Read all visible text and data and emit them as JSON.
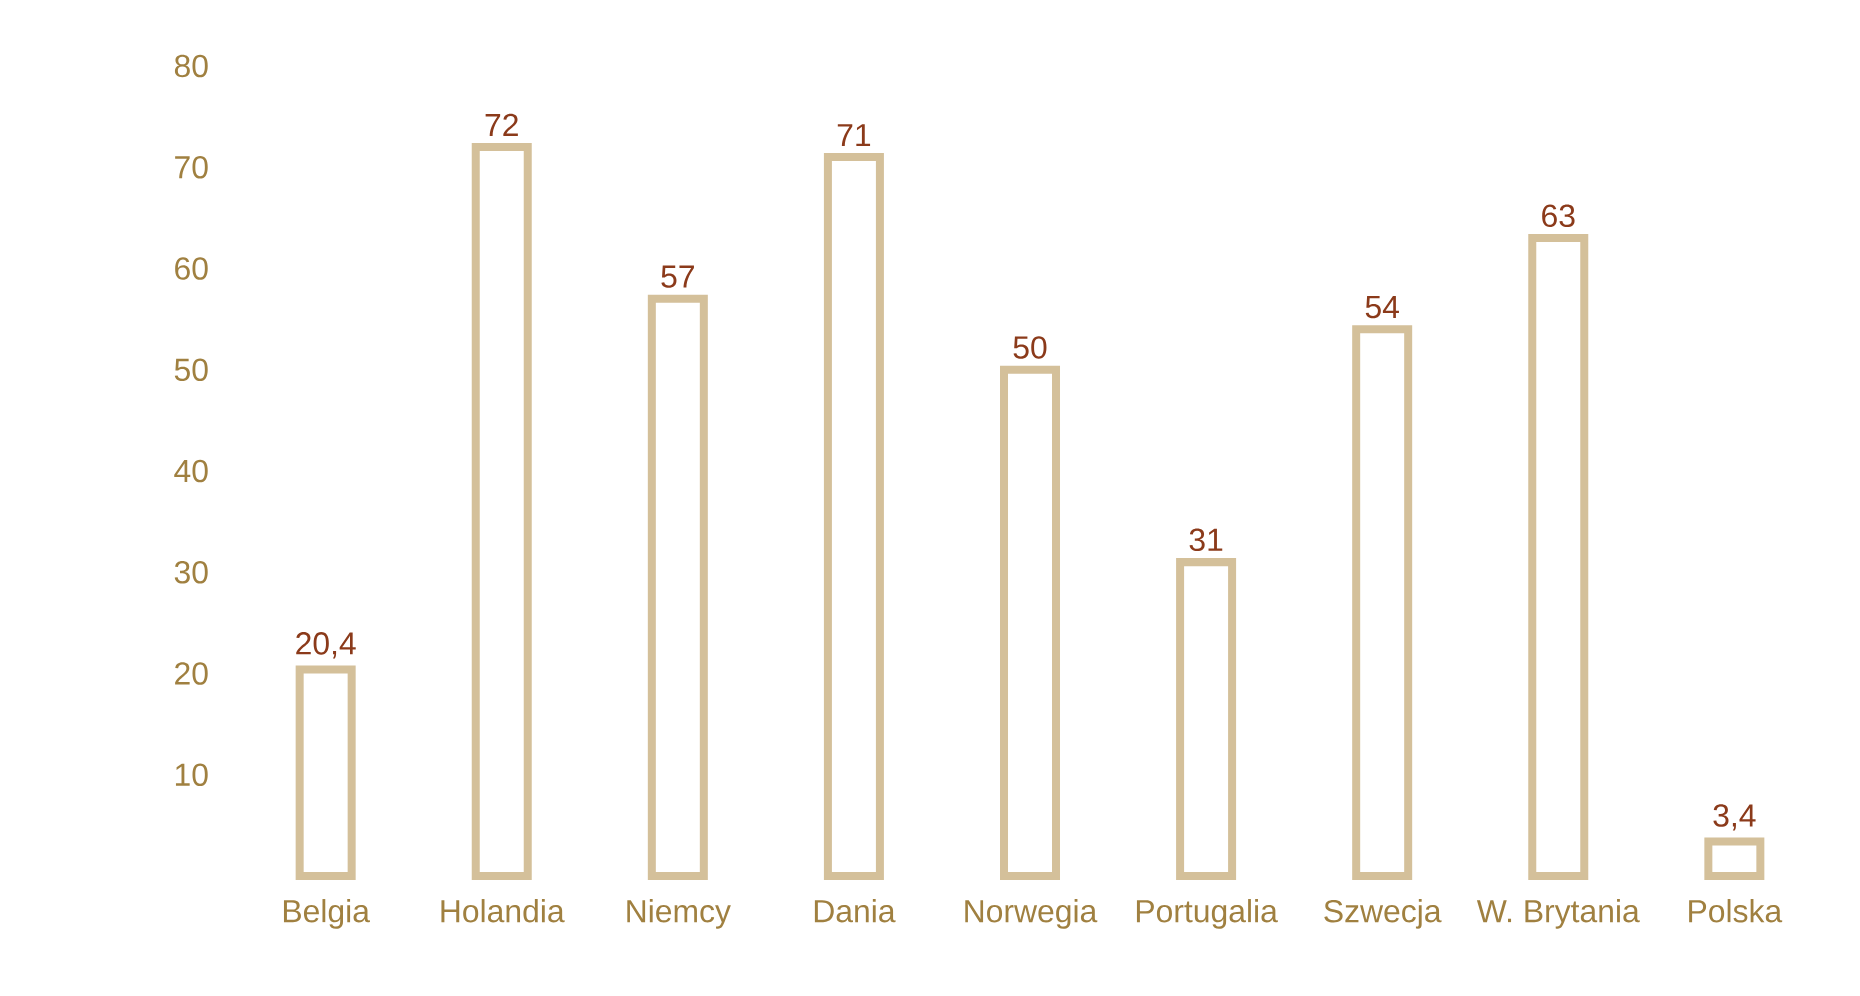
{
  "chart_data": {
    "type": "bar",
    "categories": [
      "Belgia",
      "Holandia",
      "Niemcy",
      "Dania",
      "Norwegia",
      "Portugalia",
      "Szwecja",
      "W. Brytania",
      "Polska"
    ],
    "values": [
      20.4,
      72,
      57,
      71,
      50,
      31,
      54,
      63,
      3.4
    ],
    "value_labels": [
      "20,4",
      "72",
      "57",
      "71",
      "50",
      "31",
      "54",
      "63",
      "3,4"
    ],
    "color": "#d4c09a",
    "ylim": [
      0,
      80
    ],
    "yticks": [
      10,
      20,
      30,
      40,
      50,
      60,
      70,
      80
    ]
  }
}
